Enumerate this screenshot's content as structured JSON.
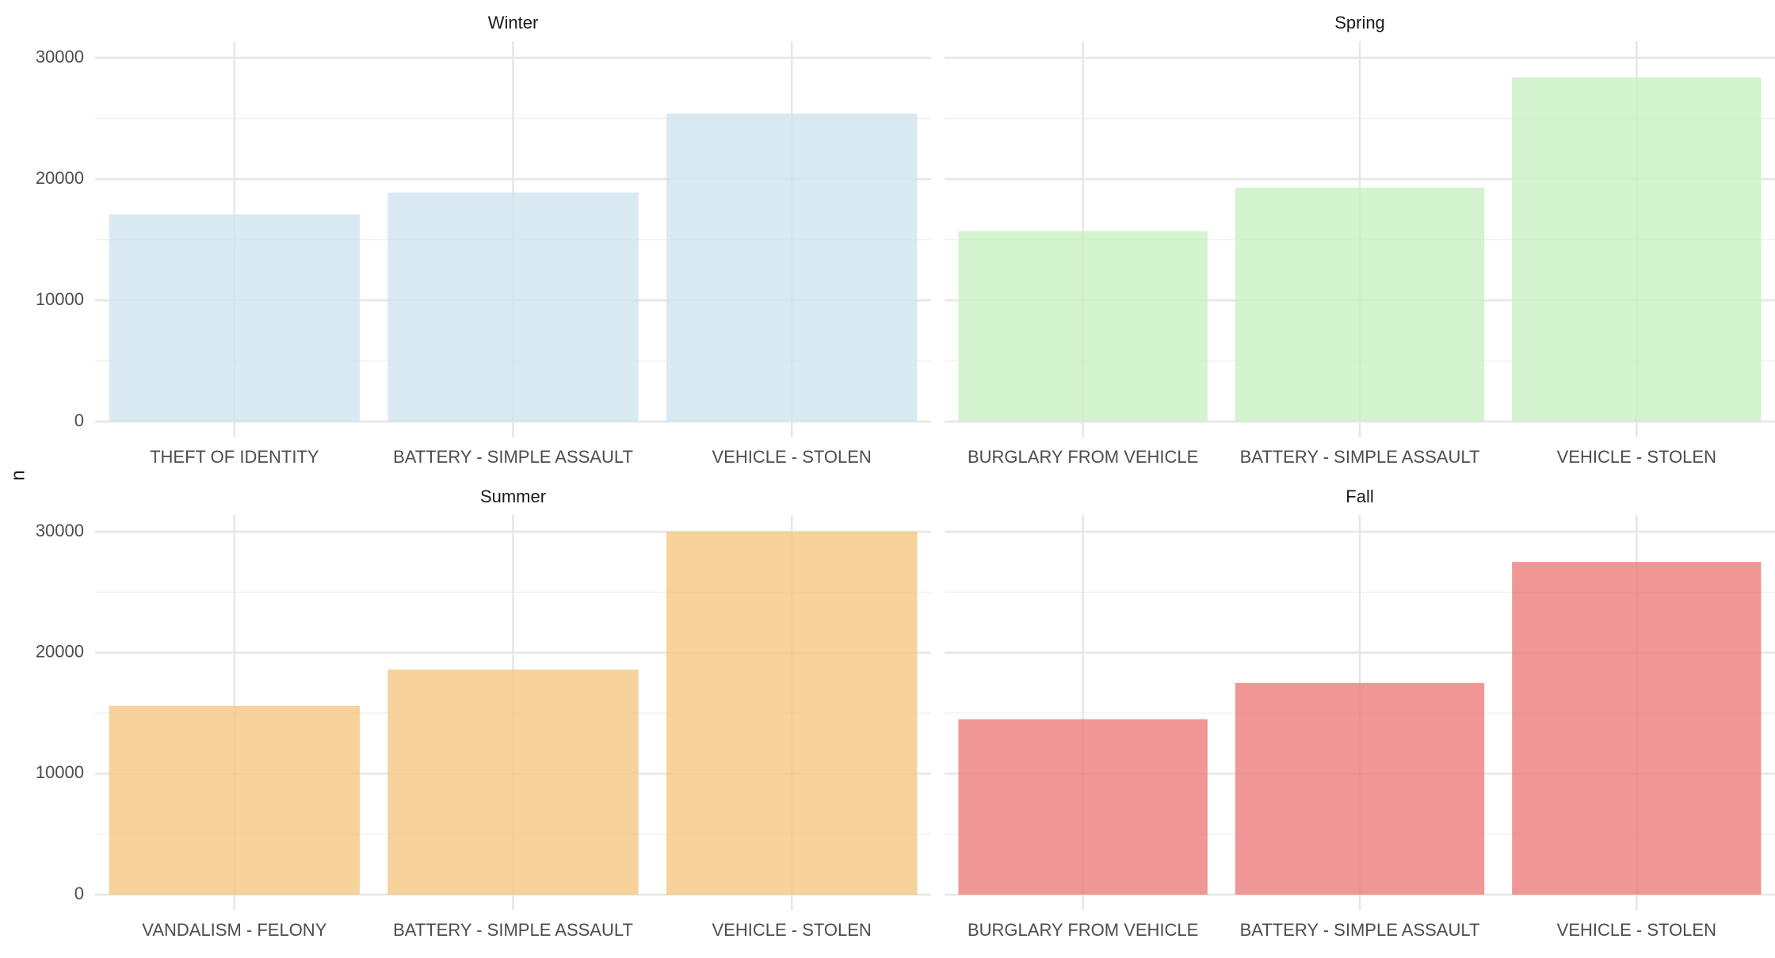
{
  "chart_data": {
    "type": "bar",
    "facet_layout": "2x2",
    "ylabel": "n",
    "xlabel": "",
    "ylim": [
      0,
      30000
    ],
    "y_ticks": [
      0,
      10000,
      20000,
      30000
    ],
    "y_tick_labels": [
      "0",
      "10000",
      "20000",
      "30000"
    ],
    "grid": true,
    "legend": "none",
    "panels": [
      {
        "title": "Winter",
        "color": "#d0e4ee",
        "categories": [
          "THEFT OF IDENTITY",
          "BATTERY - SIMPLE ASSAULT",
          "VEHICLE - STOLEN"
        ],
        "values": [
          17100,
          18900,
          25400
        ]
      },
      {
        "title": "Spring",
        "color": "#c8f0c2",
        "categories": [
          "BURGLARY FROM VEHICLE",
          "BATTERY - SIMPLE ASSAULT",
          "VEHICLE - STOLEN"
        ],
        "values": [
          15700,
          19300,
          28400
        ]
      },
      {
        "title": "Summer",
        "color": "#f3c77f",
        "categories": [
          "VANDALISM - FELONY",
          "BATTERY - SIMPLE ASSAULT",
          "VEHICLE - STOLEN"
        ],
        "values": [
          15600,
          18600,
          30000
        ]
      },
      {
        "title": "Fall",
        "color": "#ec7a78",
        "categories": [
          "BURGLARY FROM VEHICLE",
          "BATTERY - SIMPLE ASSAULT",
          "VEHICLE - STOLEN"
        ],
        "values": [
          14500,
          17500,
          27500
        ]
      }
    ]
  }
}
